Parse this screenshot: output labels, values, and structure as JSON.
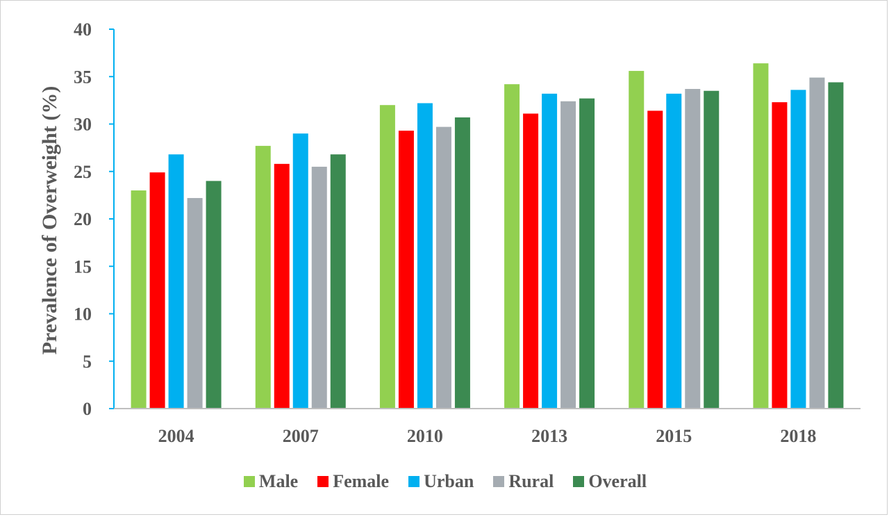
{
  "chart_data": {
    "type": "bar",
    "ylabel": "Prevalence of Overweight (%)",
    "xlabel": "",
    "ylim": [
      0,
      40
    ],
    "yticks": [
      0,
      5,
      10,
      15,
      20,
      25,
      30,
      35,
      40
    ],
    "grid": false,
    "legend": "bottom",
    "categories": [
      "2004",
      "2007",
      "2010",
      "2013",
      "2015",
      "2018"
    ],
    "series": [
      {
        "name": "Male",
        "color": "#92d050",
        "values": [
          23.0,
          27.7,
          32.0,
          34.2,
          35.6,
          36.4
        ]
      },
      {
        "name": "Female",
        "color": "#ff0000",
        "values": [
          24.9,
          25.8,
          29.3,
          31.1,
          31.4,
          32.3
        ]
      },
      {
        "name": "Urban",
        "color": "#00b0f0",
        "values": [
          26.8,
          29.0,
          32.2,
          33.2,
          33.2,
          33.6
        ]
      },
      {
        "name": "Rural",
        "color": "#a5acb2",
        "values": [
          22.2,
          25.5,
          29.7,
          32.4,
          33.7,
          34.9
        ]
      },
      {
        "name": "Overall",
        "color": "#3c8a51",
        "values": [
          24.0,
          26.8,
          30.7,
          32.7,
          33.5,
          34.4
        ]
      }
    ],
    "axis_color": "#00b0f0",
    "baseline_color": "#bfbfbf"
  }
}
